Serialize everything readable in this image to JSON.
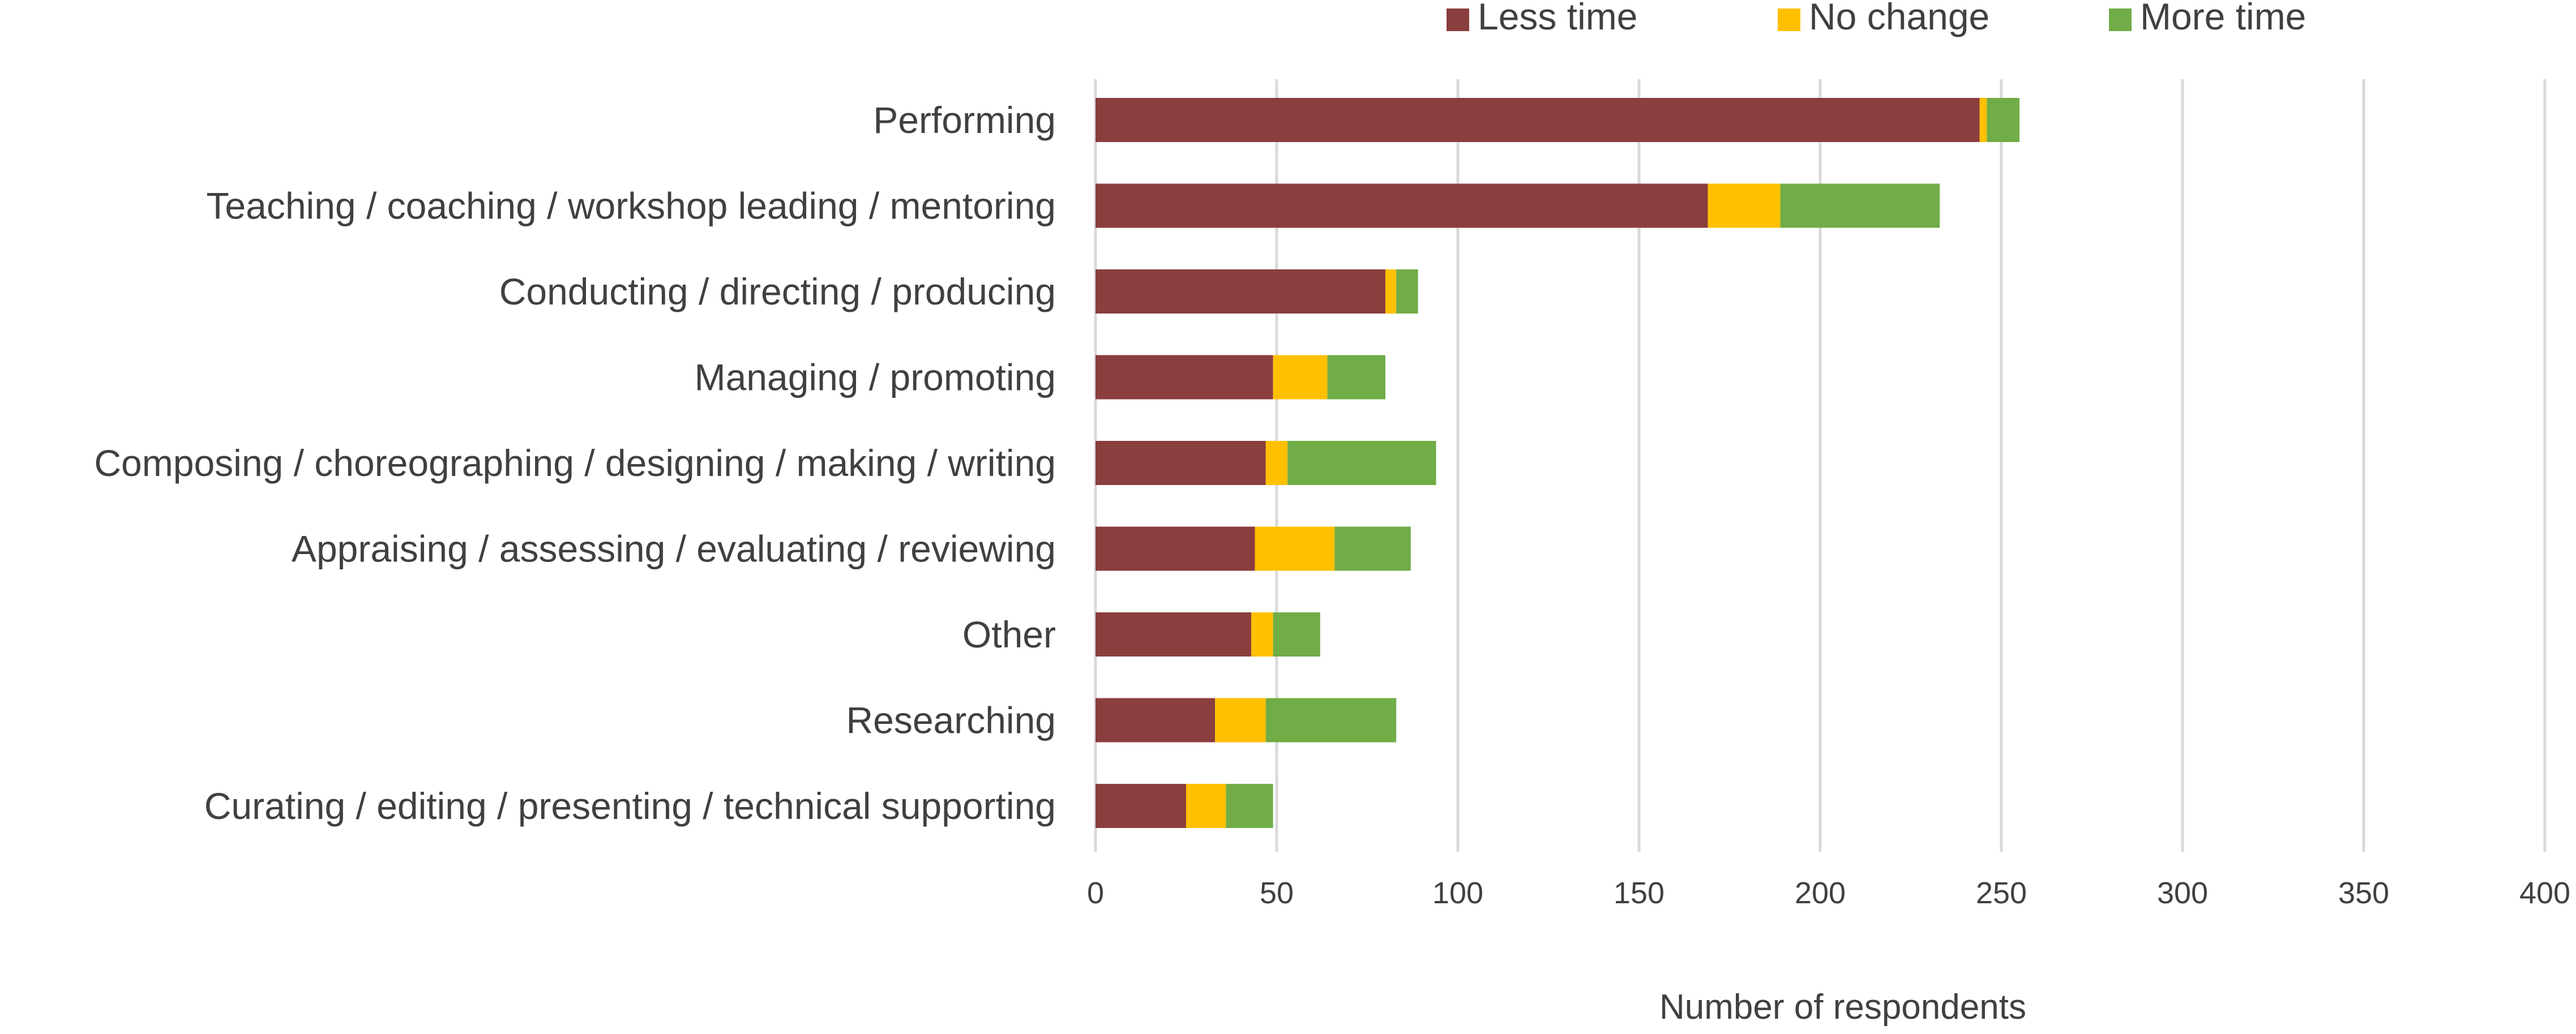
{
  "chart_data": {
    "type": "bar",
    "orientation": "horizontal",
    "stacked": true,
    "categories": [
      "Performing",
      "Teaching / coaching / workshop leading / mentoring",
      "Conducting / directing / producing",
      "Managing / promoting",
      "Composing / choreographing / designing / making / writing",
      "Appraising / assessing / evaluating / reviewing",
      "Other",
      "Researching",
      "Curating / editing / presenting / technical supporting"
    ],
    "series": [
      {
        "name": "Less time",
        "color": "#8B3E3E",
        "values": [
          244,
          169,
          80,
          49,
          47,
          44,
          43,
          33,
          25
        ]
      },
      {
        "name": "No change",
        "color": "#FFC000",
        "values": [
          2,
          20,
          3,
          15,
          6,
          22,
          6,
          14,
          11
        ]
      },
      {
        "name": "More time",
        "color": "#70AD47",
        "values": [
          9,
          44,
          6,
          16,
          41,
          21,
          13,
          36,
          13
        ]
      }
    ],
    "title": "",
    "xlabel": "Number of respondents",
    "ylabel": "",
    "xlim": [
      0,
      400
    ],
    "xticks": [
      0,
      50,
      100,
      150,
      200,
      250,
      300,
      350,
      400
    ],
    "grid": "vertical",
    "legend_position": "top"
  }
}
